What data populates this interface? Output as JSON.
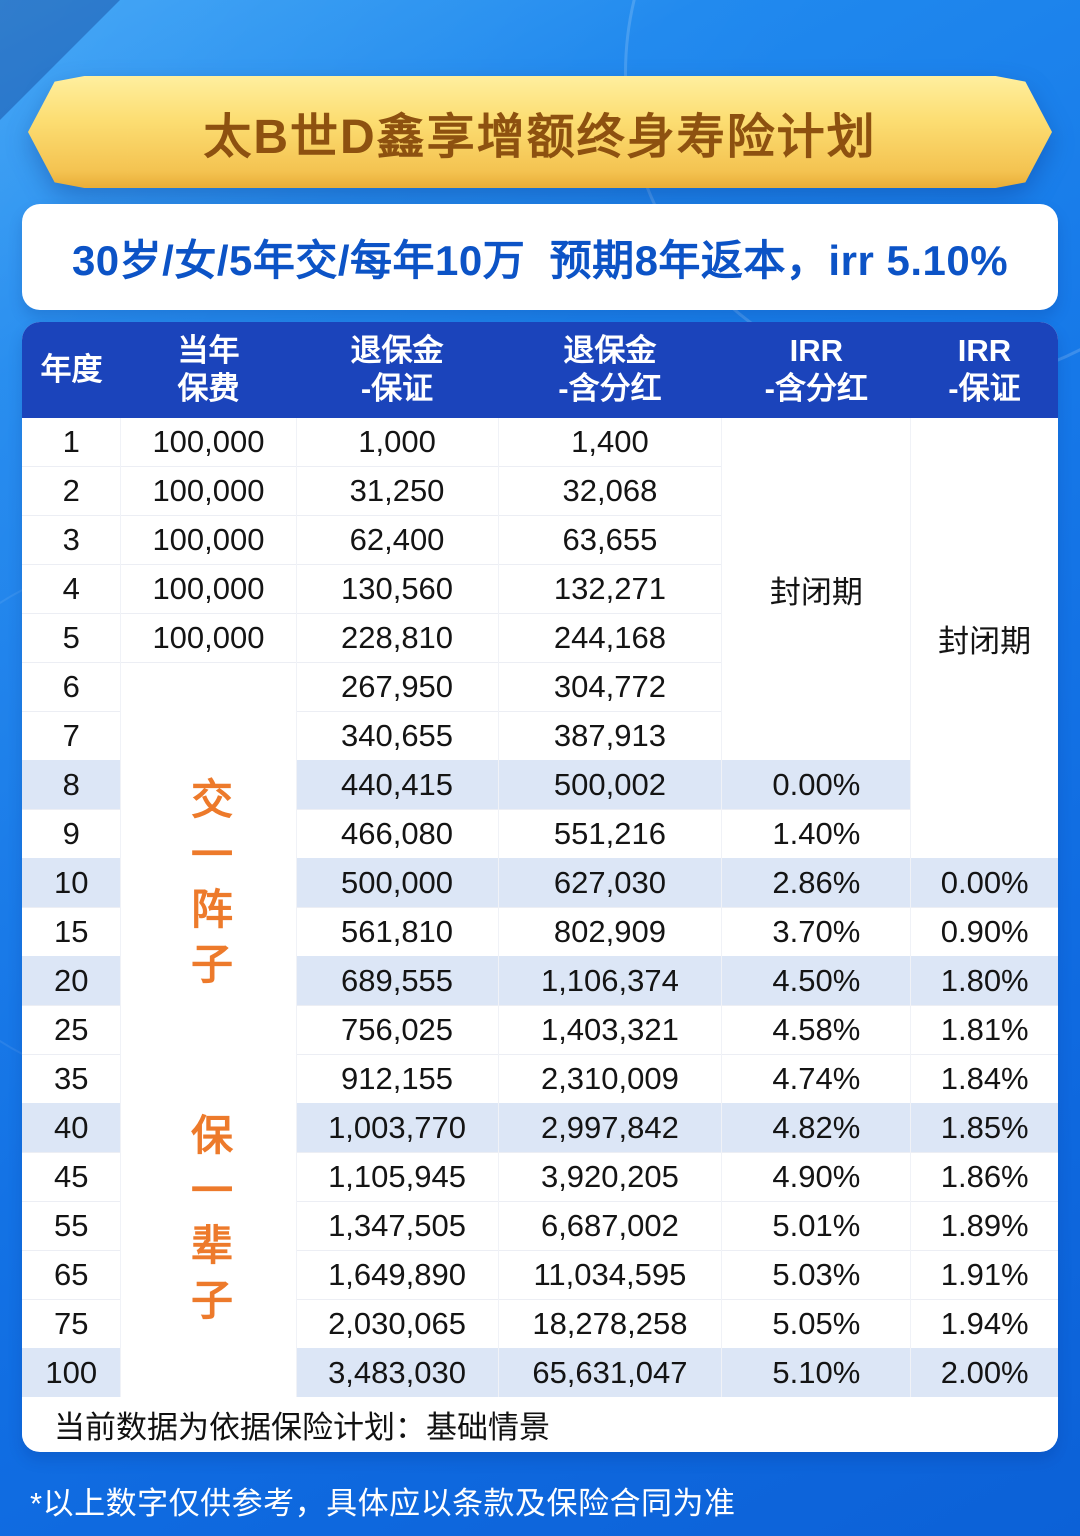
{
  "banner": {
    "title": "太B世D鑫享增额终身寿险计划"
  },
  "summary": {
    "text": "30岁/女/5年交/每年10万  预期8年返本，irr 5.10%"
  },
  "table": {
    "headers": [
      "年度",
      "当年\n保费",
      "退保金\n-保证",
      "退保金\n-含分红",
      "IRR\n-含分红",
      "IRR\n-保证"
    ],
    "closed_label": "封闭期",
    "pay_label": "交一阵子",
    "life_label": "保一辈子",
    "merges": {
      "premium_start": 5,
      "premium_span": 15,
      "irr_div_span": 7,
      "irr_guar_span": 9
    },
    "rows": [
      {
        "year": "1",
        "premium": "100,000",
        "guaranteed": "1,000",
        "dividend": "1,400",
        "irr_div": "",
        "irr_guar": "",
        "shaded": false
      },
      {
        "year": "2",
        "premium": "100,000",
        "guaranteed": "31,250",
        "dividend": "32,068",
        "irr_div": "",
        "irr_guar": "",
        "shaded": false
      },
      {
        "year": "3",
        "premium": "100,000",
        "guaranteed": "62,400",
        "dividend": "63,655",
        "irr_div": "",
        "irr_guar": "",
        "shaded": false
      },
      {
        "year": "4",
        "premium": "100,000",
        "guaranteed": "130,560",
        "dividend": "132,271",
        "irr_div": "",
        "irr_guar": "",
        "shaded": false
      },
      {
        "year": "5",
        "premium": "100,000",
        "guaranteed": "228,810",
        "dividend": "244,168",
        "irr_div": "",
        "irr_guar": "",
        "shaded": false
      },
      {
        "year": "6",
        "premium": "",
        "guaranteed": "267,950",
        "dividend": "304,772",
        "irr_div": "",
        "irr_guar": "",
        "shaded": false
      },
      {
        "year": "7",
        "premium": "",
        "guaranteed": "340,655",
        "dividend": "387,913",
        "irr_div": "",
        "irr_guar": "",
        "shaded": false
      },
      {
        "year": "8",
        "premium": "",
        "guaranteed": "440,415",
        "dividend": "500,002",
        "irr_div": "0.00%",
        "irr_guar": "",
        "shaded": true
      },
      {
        "year": "9",
        "premium": "",
        "guaranteed": "466,080",
        "dividend": "551,216",
        "irr_div": "1.40%",
        "irr_guar": "",
        "shaded": false
      },
      {
        "year": "10",
        "premium": "",
        "guaranteed": "500,000",
        "dividend": "627,030",
        "irr_div": "2.86%",
        "irr_guar": "0.00%",
        "shaded": true
      },
      {
        "year": "15",
        "premium": "",
        "guaranteed": "561,810",
        "dividend": "802,909",
        "irr_div": "3.70%",
        "irr_guar": "0.90%",
        "shaded": false
      },
      {
        "year": "20",
        "premium": "",
        "guaranteed": "689,555",
        "dividend": "1,106,374",
        "irr_div": "4.50%",
        "irr_guar": "1.80%",
        "shaded": true
      },
      {
        "year": "25",
        "premium": "",
        "guaranteed": "756,025",
        "dividend": "1,403,321",
        "irr_div": "4.58%",
        "irr_guar": "1.81%",
        "shaded": false
      },
      {
        "year": "35",
        "premium": "",
        "guaranteed": "912,155",
        "dividend": "2,310,009",
        "irr_div": "4.74%",
        "irr_guar": "1.84%",
        "shaded": false
      },
      {
        "year": "40",
        "premium": "",
        "guaranteed": "1,003,770",
        "dividend": "2,997,842",
        "irr_div": "4.82%",
        "irr_guar": "1.85%",
        "shaded": true
      },
      {
        "year": "45",
        "premium": "",
        "guaranteed": "1,105,945",
        "dividend": "3,920,205",
        "irr_div": "4.90%",
        "irr_guar": "1.86%",
        "shaded": false
      },
      {
        "year": "55",
        "premium": "",
        "guaranteed": "1,347,505",
        "dividend": "6,687,002",
        "irr_div": "5.01%",
        "irr_guar": "1.89%",
        "shaded": false
      },
      {
        "year": "65",
        "premium": "",
        "guaranteed": "1,649,890",
        "dividend": "11,034,595",
        "irr_div": "5.03%",
        "irr_guar": "1.91%",
        "shaded": false
      },
      {
        "year": "75",
        "premium": "",
        "guaranteed": "2,030,065",
        "dividend": "18,278,258",
        "irr_div": "5.05%",
        "irr_guar": "1.94%",
        "shaded": false
      },
      {
        "year": "100",
        "premium": "",
        "guaranteed": "3,483,030",
        "dividend": "65,631,047",
        "irr_div": "5.10%",
        "irr_guar": "2.00%",
        "shaded": true
      }
    ],
    "scenario_note": "当前数据为依据保险计划：基础情景"
  },
  "disclaimer": "*以上数字仅供参考，具体应以条款及保险合同为准",
  "colors": {
    "background_blue": "#1678e8",
    "header_blue": "#1b44bb",
    "row_shade": "#dce6f6",
    "banner_gold": "#f4c351",
    "title_brown": "#8d5110",
    "summary_blue": "#0c53c6",
    "accent_orange": "#ed7a2b"
  }
}
